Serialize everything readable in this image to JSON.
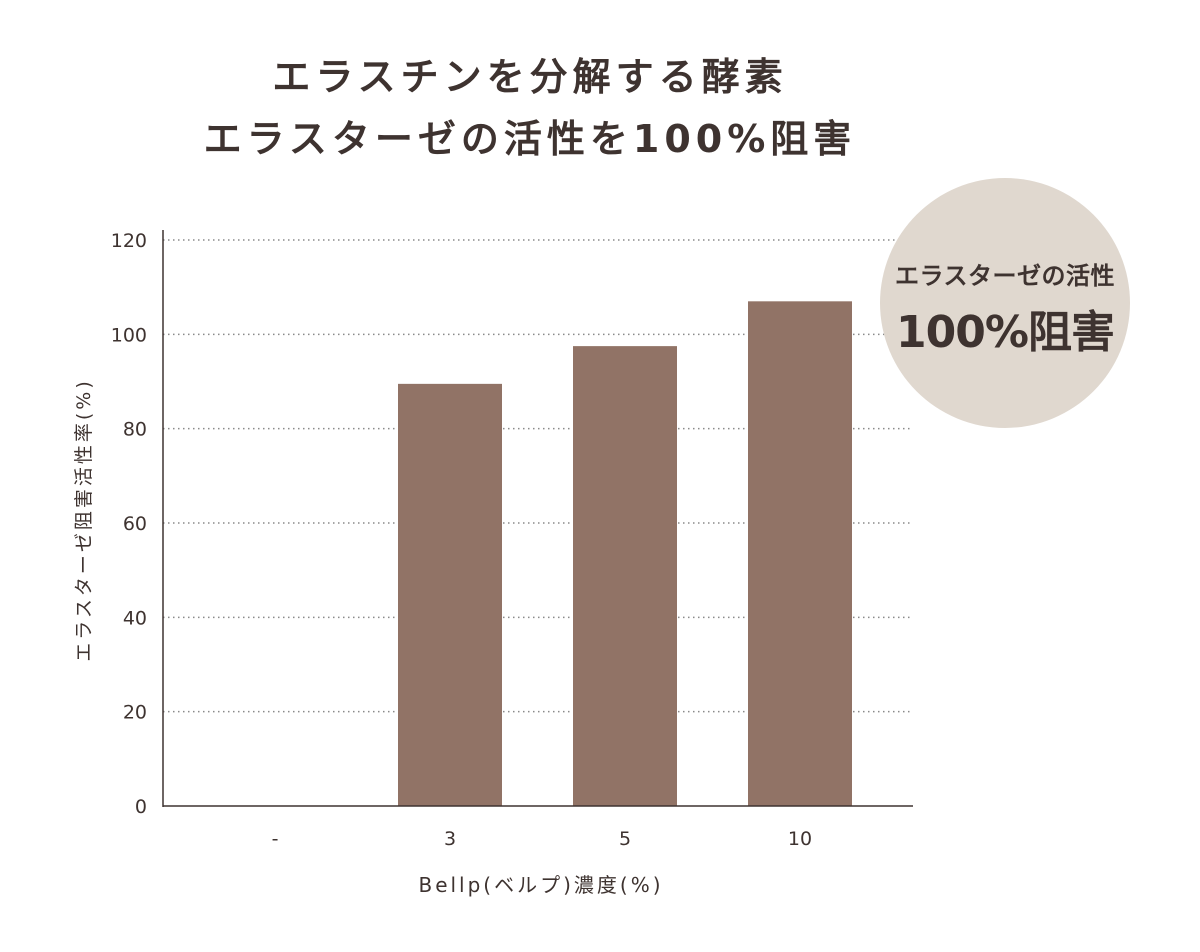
{
  "title": {
    "line1": "エラスチンを分解する酵素",
    "line2": "エラスターゼの活性を100%阻害"
  },
  "badge": {
    "line1": "エラスターゼの活性",
    "line2": "100%阻害",
    "color": "#e0d8cf"
  },
  "colors": {
    "bar": "#917366",
    "text": "#3e3330",
    "axis": "#3e3330",
    "grid": "#8a8a8a"
  },
  "chart_data": {
    "type": "bar",
    "categories": [
      "-",
      "3",
      "5",
      "10"
    ],
    "values": [
      0,
      89.5,
      97.5,
      107
    ],
    "xlabel": "Bellp(ベルプ)濃度(%)",
    "ylabel": "エラスターゼ阻害活性率(%)",
    "ylim": [
      0,
      120
    ],
    "yticks": [
      0,
      20,
      40,
      60,
      80,
      100,
      120
    ],
    "grid": true
  }
}
